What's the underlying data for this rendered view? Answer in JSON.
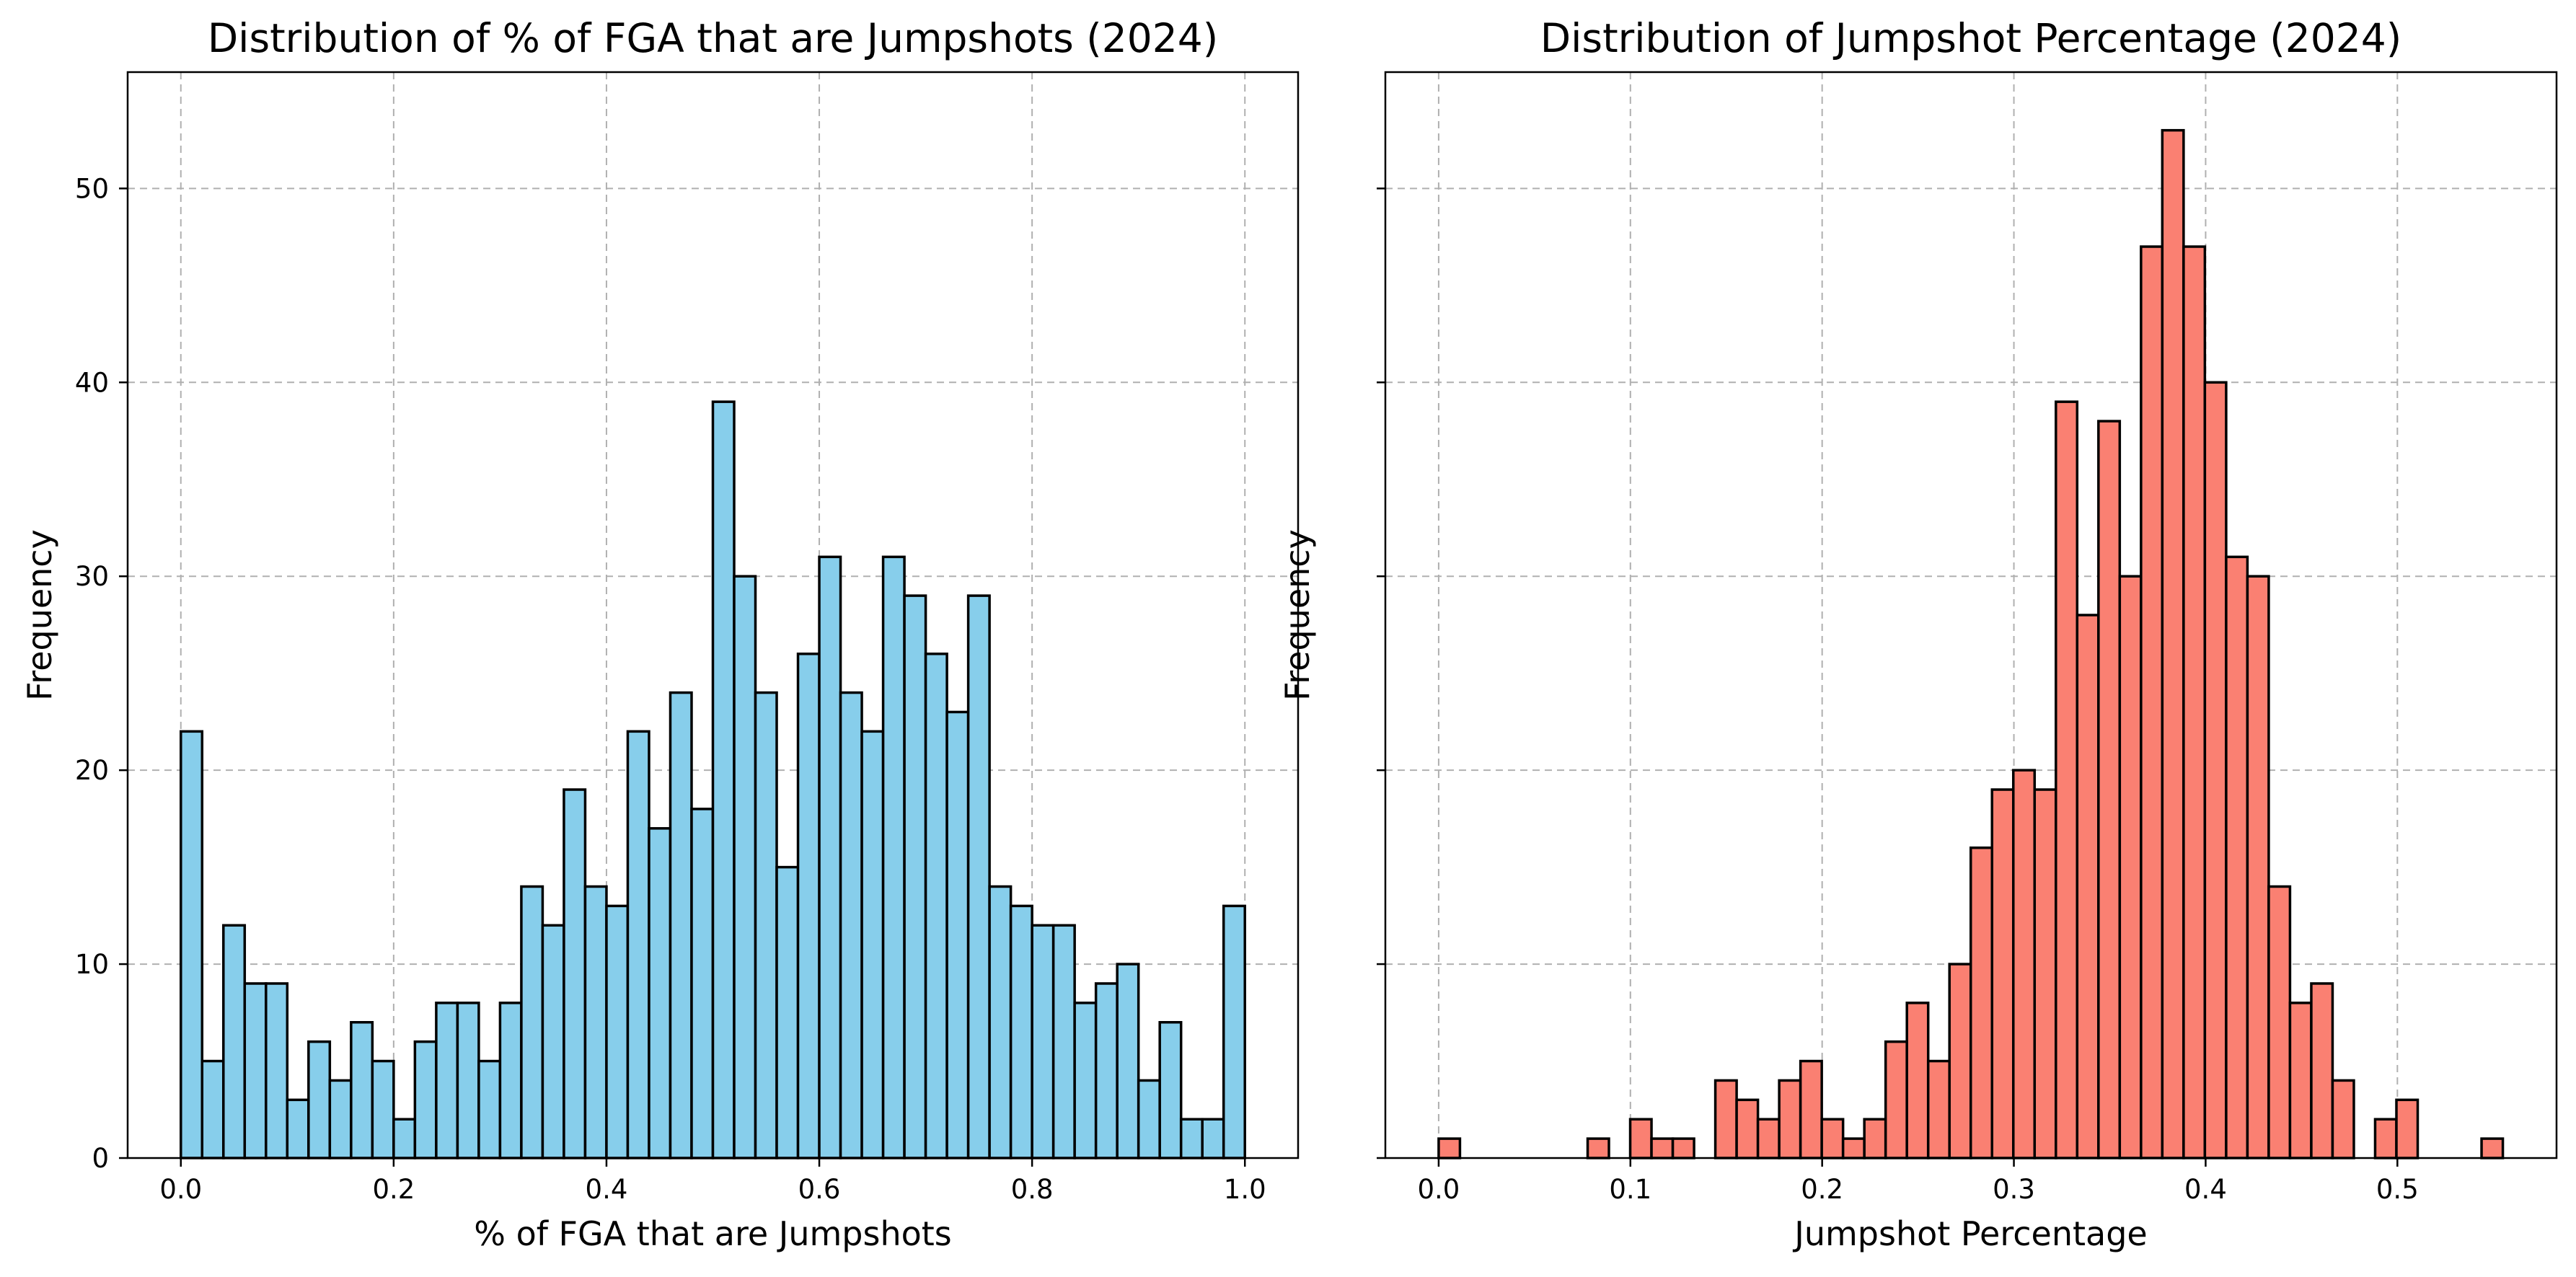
{
  "chart_data": [
    {
      "type": "bar",
      "title": "Distribution of % of FGA that are Jumpshots (2024)",
      "xlabel": "% of FGA that are Jumpshots",
      "ylabel": "Frequency",
      "xlim": [
        -0.05,
        1.05
      ],
      "ylim": [
        0,
        56
      ],
      "grid": true,
      "color": "#87ceeb",
      "edge_color": "#000000",
      "bin_start": 0.0,
      "bin_width": 0.02,
      "counts": [
        22,
        5,
        12,
        9,
        9,
        3,
        6,
        4,
        7,
        5,
        2,
        6,
        8,
        8,
        5,
        8,
        14,
        12,
        19,
        14,
        13,
        22,
        17,
        24,
        18,
        39,
        30,
        24,
        15,
        26,
        31,
        24,
        22,
        31,
        29,
        26,
        23,
        29,
        14,
        13,
        12,
        12,
        8,
        9,
        10,
        4,
        7,
        2,
        2,
        13
      ],
      "x_ticks": [
        "0.0",
        "0.2",
        "0.4",
        "0.6",
        "0.8",
        "1.0"
      ],
      "x_tick_values": [
        0.0,
        0.2,
        0.4,
        0.6,
        0.8,
        1.0
      ],
      "y_ticks": [
        "0",
        "10",
        "20",
        "30",
        "40",
        "50"
      ],
      "y_tick_values": [
        0,
        10,
        20,
        30,
        40,
        50
      ]
    },
    {
      "type": "bar",
      "title": "Distribution of Jumpshot Percentage (2024)",
      "xlabel": "Jumpshot Percentage",
      "ylabel": "Frequency",
      "xlim": [
        -0.0278,
        0.583
      ],
      "ylim": [
        0,
        56
      ],
      "grid": true,
      "color": "#fa8072",
      "edge_color": "#000000",
      "bin_start": 0.0,
      "bin_width": 0.0111,
      "counts": [
        1,
        0,
        0,
        0,
        0,
        0,
        0,
        1,
        0,
        2,
        1,
        1,
        0,
        4,
        3,
        2,
        4,
        5,
        2,
        1,
        2,
        6,
        8,
        5,
        10,
        16,
        19,
        20,
        19,
        39,
        28,
        38,
        30,
        47,
        53,
        47,
        40,
        31,
        30,
        14,
        8,
        9,
        4,
        0,
        2,
        3,
        0,
        0,
        0,
        1
      ],
      "x_ticks": [
        "0.0",
        "0.1",
        "0.2",
        "0.3",
        "0.4",
        "0.5"
      ],
      "x_tick_values": [
        0.0,
        0.1,
        0.2,
        0.3,
        0.4,
        0.5
      ],
      "y_ticks": [],
      "y_tick_values": [
        0,
        10,
        20,
        30,
        40,
        50
      ]
    }
  ]
}
